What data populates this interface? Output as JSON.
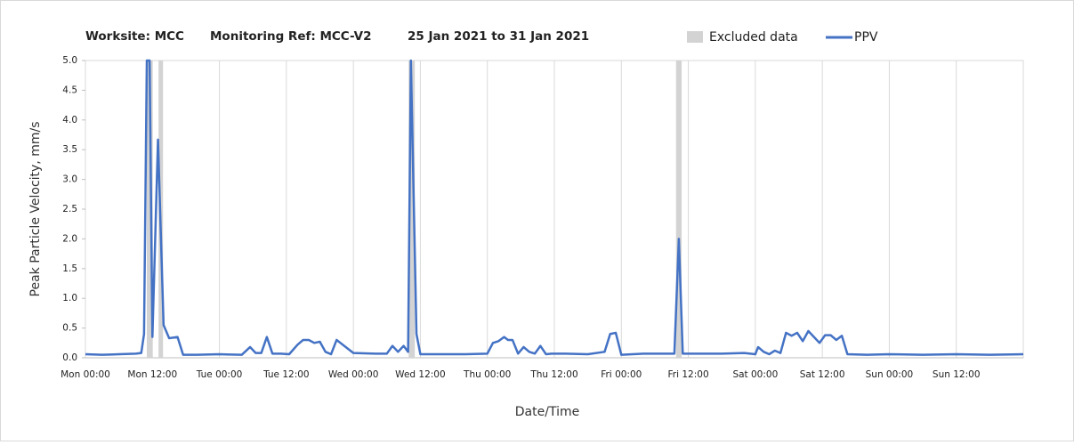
{
  "chart_data": {
    "type": "line",
    "title": [
      "Worksite: MCC",
      "Monitoring Ref: MCC-V2",
      "25 Jan 2021 to 31 Jan 2021"
    ],
    "xlabel": "Date/Time",
    "ylabel": "Peak Particle Velocity, mm/s",
    "xlim": [
      0,
      168
    ],
    "xticks": [
      {
        "value": 0,
        "label": "Mon 00:00"
      },
      {
        "value": 12,
        "label": "Mon 12:00"
      },
      {
        "value": 24,
        "label": "Tue 00:00"
      },
      {
        "value": 36,
        "label": "Tue 12:00"
      },
      {
        "value": 48,
        "label": "Wed 00:00"
      },
      {
        "value": 60,
        "label": "Wed 12:00"
      },
      {
        "value": 72,
        "label": "Thu 00:00"
      },
      {
        "value": 84,
        "label": "Thu 12:00"
      },
      {
        "value": 96,
        "label": "Fri 00:00"
      },
      {
        "value": 108,
        "label": "Fri 12:00"
      },
      {
        "value": 120,
        "label": "Sat 00:00"
      },
      {
        "value": 132,
        "label": "Sat 12:00"
      },
      {
        "value": 144,
        "label": "Sun 00:00"
      },
      {
        "value": 156,
        "label": "Sun 12:00"
      }
    ],
    "ylim": [
      0,
      5
    ],
    "yticks": [
      {
        "value": 0,
        "label": "0.0"
      },
      0.5,
      {
        "value": 1,
        "label": "1.0"
      },
      1.5,
      {
        "value": 2,
        "label": "2.0"
      },
      2.5,
      {
        "value": 3,
        "label": "3.0"
      },
      3.5,
      {
        "value": 4,
        "label": "4.0"
      },
      4.5,
      {
        "value": 5,
        "label": "5.0"
      }
    ],
    "xgrid": true,
    "excluded": {
      "name": "Excluded data",
      "color": "#d3d3d3",
      "ranges": [
        [
          11.0,
          12.0
        ],
        [
          13.1,
          13.9
        ],
        [
          57.9,
          59.0
        ],
        [
          105.8,
          106.8
        ]
      ]
    },
    "x": [
      0,
      3,
      6,
      9,
      10,
      10.5,
      11,
      11.5,
      12,
      13,
      14,
      15,
      16.5,
      17.5,
      20,
      24,
      28,
      29.5,
      30.5,
      31.5,
      32.5,
      33.5,
      35,
      36.5,
      38,
      39,
      40,
      41,
      42,
      43,
      44,
      45,
      48,
      52,
      54,
      55,
      56,
      57,
      57.8,
      58.3,
      59.3,
      60,
      64,
      68,
      72,
      73,
      74,
      75,
      75.7,
      76.5,
      77.5,
      78.5,
      79.5,
      80.5,
      81.5,
      82.5,
      83.5,
      86,
      90,
      93,
      94,
      95,
      96,
      100,
      104,
      105.5,
      106.3,
      107,
      110,
      114,
      118,
      120,
      120.5,
      121.5,
      122.5,
      123.5,
      124.5,
      125.5,
      126.5,
      127.5,
      128.5,
      129.5,
      130.5,
      131.5,
      132.5,
      133.5,
      134.5,
      135.5,
      136.5,
      140,
      144,
      150,
      156,
      162,
      168
    ],
    "series": [
      {
        "name": "PPV",
        "color": "#4472c4",
        "values": [
          0.06,
          0.05,
          0.06,
          0.07,
          0.08,
          0.4,
          5.0,
          5.0,
          0.35,
          3.67,
          0.55,
          0.33,
          0.35,
          0.05,
          0.05,
          0.06,
          0.05,
          0.18,
          0.08,
          0.08,
          0.35,
          0.07,
          0.07,
          0.06,
          0.22,
          0.3,
          0.3,
          0.25,
          0.27,
          0.1,
          0.06,
          0.3,
          0.08,
          0.07,
          0.07,
          0.2,
          0.1,
          0.2,
          0.1,
          5.0,
          0.4,
          0.06,
          0.06,
          0.06,
          0.07,
          0.25,
          0.28,
          0.35,
          0.3,
          0.3,
          0.07,
          0.18,
          0.1,
          0.07,
          0.2,
          0.06,
          0.07,
          0.07,
          0.06,
          0.1,
          0.4,
          0.42,
          0.05,
          0.07,
          0.07,
          0.07,
          2.0,
          0.07,
          0.07,
          0.07,
          0.08,
          0.06,
          0.18,
          0.1,
          0.06,
          0.12,
          0.08,
          0.42,
          0.37,
          0.42,
          0.28,
          0.45,
          0.35,
          0.25,
          0.38,
          0.38,
          0.3,
          0.37,
          0.06,
          0.05,
          0.06,
          0.05,
          0.06,
          0.05,
          0.06
        ]
      }
    ]
  }
}
